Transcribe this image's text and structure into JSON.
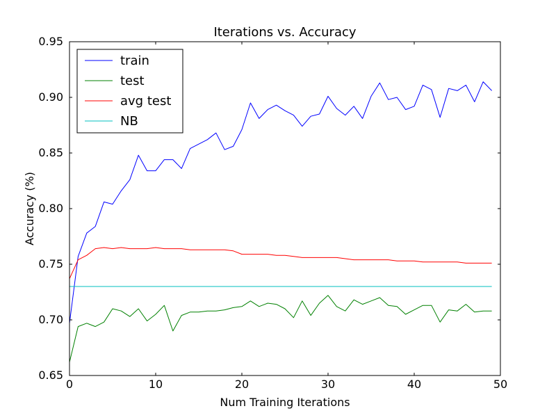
{
  "chart_data": {
    "type": "line",
    "title": "Iterations  vs. Accuracy",
    "xlabel": "Num Training Iterations",
    "ylabel": "Accuracy (%)",
    "xlim": [
      0,
      50
    ],
    "ylim": [
      0.65,
      0.95
    ],
    "grid": false,
    "legend_position": "top-left",
    "x_ticks": [
      0,
      10,
      20,
      30,
      40,
      50
    ],
    "x_tick_labels": [
      "0",
      "10",
      "20",
      "30",
      "40",
      "50"
    ],
    "y_ticks": [
      0.65,
      0.7,
      0.75,
      0.8,
      0.85,
      0.9,
      0.95
    ],
    "y_tick_labels": [
      "0.65",
      "0.70",
      "0.75",
      "0.80",
      "0.85",
      "0.90",
      "0.95"
    ],
    "x": [
      0,
      1,
      2,
      3,
      4,
      5,
      6,
      7,
      8,
      9,
      10,
      11,
      12,
      13,
      14,
      15,
      16,
      17,
      18,
      19,
      20,
      21,
      22,
      23,
      24,
      25,
      26,
      27,
      28,
      29,
      30,
      31,
      32,
      33,
      34,
      35,
      36,
      37,
      38,
      39,
      40,
      41,
      42,
      43,
      44,
      45,
      46,
      47,
      48,
      49
    ],
    "series": [
      {
        "name": "train",
        "color": "#0000ff",
        "values": [
          0.697,
          0.757,
          0.778,
          0.784,
          0.806,
          0.804,
          0.816,
          0.826,
          0.848,
          0.834,
          0.834,
          0.844,
          0.844,
          0.836,
          0.854,
          0.858,
          0.862,
          0.868,
          0.853,
          0.856,
          0.871,
          0.895,
          0.881,
          0.889,
          0.893,
          0.888,
          0.884,
          0.874,
          0.883,
          0.885,
          0.901,
          0.89,
          0.884,
          0.892,
          0.881,
          0.901,
          0.913,
          0.898,
          0.9,
          0.889,
          0.892,
          0.911,
          0.907,
          0.882,
          0.908,
          0.906,
          0.911,
          0.896,
          0.914,
          0.906
        ]
      },
      {
        "name": "test",
        "color": "#008000",
        "values": [
          0.662,
          0.694,
          0.697,
          0.694,
          0.698,
          0.71,
          0.708,
          0.703,
          0.71,
          0.699,
          0.705,
          0.713,
          0.69,
          0.704,
          0.707,
          0.707,
          0.708,
          0.708,
          0.709,
          0.711,
          0.712,
          0.717,
          0.712,
          0.715,
          0.714,
          0.71,
          0.702,
          0.717,
          0.704,
          0.715,
          0.722,
          0.712,
          0.708,
          0.718,
          0.714,
          0.717,
          0.72,
          0.713,
          0.712,
          0.705,
          0.709,
          0.713,
          0.713,
          0.698,
          0.709,
          0.708,
          0.714,
          0.707,
          0.708,
          0.708
        ]
      },
      {
        "name": "avg test",
        "color": "#ff0000",
        "values": [
          0.737,
          0.754,
          0.758,
          0.764,
          0.765,
          0.764,
          0.765,
          0.764,
          0.764,
          0.764,
          0.765,
          0.764,
          0.764,
          0.764,
          0.763,
          0.763,
          0.763,
          0.763,
          0.763,
          0.762,
          0.759,
          0.759,
          0.759,
          0.759,
          0.758,
          0.758,
          0.757,
          0.756,
          0.756,
          0.756,
          0.756,
          0.756,
          0.755,
          0.754,
          0.754,
          0.754,
          0.754,
          0.754,
          0.753,
          0.753,
          0.753,
          0.752,
          0.752,
          0.752,
          0.752,
          0.752,
          0.751,
          0.751,
          0.751,
          0.751
        ]
      },
      {
        "name": "NB",
        "color": "#00bfbf",
        "values": [
          0.73,
          0.73,
          0.73,
          0.73,
          0.73,
          0.73,
          0.73,
          0.73,
          0.73,
          0.73,
          0.73,
          0.73,
          0.73,
          0.73,
          0.73,
          0.73,
          0.73,
          0.73,
          0.73,
          0.73,
          0.73,
          0.73,
          0.73,
          0.73,
          0.73,
          0.73,
          0.73,
          0.73,
          0.73,
          0.73,
          0.73,
          0.73,
          0.73,
          0.73,
          0.73,
          0.73,
          0.73,
          0.73,
          0.73,
          0.73,
          0.73,
          0.73,
          0.73,
          0.73,
          0.73,
          0.73,
          0.73,
          0.73,
          0.73,
          0.73
        ]
      }
    ]
  }
}
